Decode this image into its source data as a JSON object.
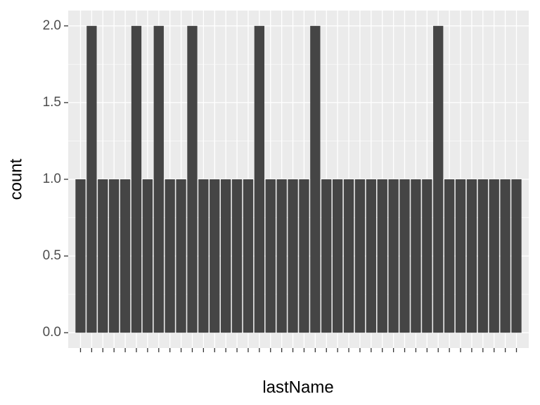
{
  "chart_data": {
    "type": "bar",
    "x_label": "lastName",
    "y_label": "count",
    "categories": [
      null,
      null,
      null,
      null,
      null,
      null,
      null,
      null,
      null,
      null,
      null,
      null,
      null,
      null,
      null,
      null,
      null,
      null,
      null,
      null,
      null,
      null,
      null,
      null,
      null,
      null,
      null,
      null,
      null,
      null,
      null,
      null,
      null,
      null,
      null,
      null,
      null,
      null,
      null,
      null
    ],
    "values": [
      1,
      2,
      1,
      1,
      1,
      2,
      1,
      2,
      1,
      1,
      2,
      1,
      1,
      1,
      1,
      1,
      2,
      1,
      1,
      1,
      1,
      2,
      1,
      1,
      1,
      1,
      1,
      1,
      1,
      1,
      1,
      1,
      2,
      1,
      1,
      1,
      1,
      1,
      1,
      1
    ],
    "color": "#454545",
    "ylim": [
      -0.1,
      2.1
    ],
    "yticks": [
      {
        "value": 0,
        "label": "0.0"
      },
      {
        "value": 0.5,
        "label": "0.5"
      },
      {
        "value": 1,
        "label": "1.0"
      },
      {
        "value": 1.5,
        "label": "1.5"
      },
      {
        "value": 2,
        "label": "2.0"
      }
    ],
    "grid": true
  }
}
